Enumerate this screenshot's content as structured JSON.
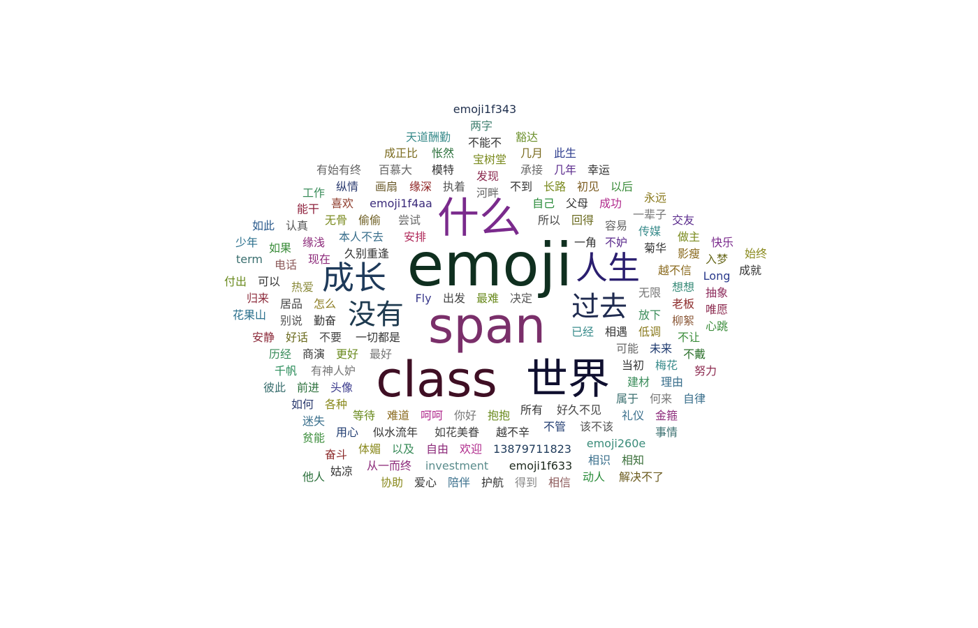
{
  "words": [
    {
      "text": "emoji1f343",
      "color": "#1f2f4d"
    },
    {
      "text": "两字",
      "color": "#3f7f6f"
    },
    {
      "text": "天道酬勤",
      "color": "#3a8c8c"
    },
    {
      "text": "不能不",
      "color": "#333333"
    },
    {
      "text": "豁达",
      "color": "#6b8f2a"
    },
    {
      "text": "成正比",
      "color": "#7a6a1e"
    },
    {
      "text": "怅然",
      "color": "#2a6f3a"
    },
    {
      "text": "宝树堂",
      "color": "#7a8a1e"
    },
    {
      "text": "几月",
      "color": "#7a6a1e"
    },
    {
      "text": "此生",
      "color": "#2a3a8c"
    },
    {
      "text": "有始有终",
      "color": "#666666"
    },
    {
      "text": "百慕大",
      "color": "#666666"
    },
    {
      "text": "模特",
      "color": "#333333"
    },
    {
      "text": "发现",
      "color": "#8a2a4f"
    },
    {
      "text": "承接",
      "color": "#6a6a6a"
    },
    {
      "text": "几年",
      "color": "#5a2a8c"
    },
    {
      "text": "幸运",
      "color": "#333333"
    },
    {
      "text": "工作",
      "color": "#3a8c5a"
    },
    {
      "text": "纵情",
      "color": "#2a3a6f"
    },
    {
      "text": "画扇",
      "color": "#6a5a2a"
    },
    {
      "text": "缘深",
      "color": "#8c1e1e"
    },
    {
      "text": "执着",
      "color": "#555555"
    },
    {
      "text": "河畔",
      "color": "#666666"
    },
    {
      "text": "不到",
      "color": "#333333"
    },
    {
      "text": "长路",
      "color": "#7a8a1e"
    },
    {
      "text": "初见",
      "color": "#7a5a1e"
    },
    {
      "text": "以后",
      "color": "#3a8c3a"
    },
    {
      "text": "永远",
      "color": "#8a7a1e"
    },
    {
      "text": "能干",
      "color": "#8c1e3a"
    },
    {
      "text": "喜欢",
      "color": "#8c3a2a"
    },
    {
      "text": "emoji1f4aa",
      "color": "#3a2a7a"
    },
    {
      "text": "自己",
      "color": "#2a8c3a"
    },
    {
      "text": "父母",
      "color": "#333333"
    },
    {
      "text": "成功",
      "color": "#b02a8c"
    },
    {
      "text": "一辈子",
      "color": "#777777"
    },
    {
      "text": "什么",
      "color": "#7a2a8c"
    },
    {
      "text": "如此",
      "color": "#2a5a8c"
    },
    {
      "text": "认真",
      "color": "#555555"
    },
    {
      "text": "无骨",
      "color": "#7a8a1e"
    },
    {
      "text": "偷偷",
      "color": "#6a5a1e"
    },
    {
      "text": "尝试",
      "color": "#6a6a6a"
    },
    {
      "text": "所以",
      "color": "#444444"
    },
    {
      "text": "回得",
      "color": "#6a6a1e"
    },
    {
      "text": "容易",
      "color": "#666666"
    },
    {
      "text": "传媒",
      "color": "#3a8c8c"
    },
    {
      "text": "交友",
      "color": "#5a2a8c"
    },
    {
      "text": "少年",
      "color": "#2a6f8c"
    },
    {
      "text": "本人不去",
      "color": "#3a6f8c"
    },
    {
      "text": "安排",
      "color": "#b02a5a"
    },
    {
      "text": "一角",
      "color": "#333333"
    },
    {
      "text": "不妒",
      "color": "#5a2a8c"
    },
    {
      "text": "做主",
      "color": "#7a8a1e"
    },
    {
      "text": "emoji",
      "color": "#0f2f1f"
    },
    {
      "text": "如果",
      "color": "#3a8c3a"
    },
    {
      "text": "缘浅",
      "color": "#8c2a7a"
    },
    {
      "text": "久别重逢",
      "color": "#333333"
    },
    {
      "text": "成长",
      "color": "#1e3a5a"
    },
    {
      "text": "人生",
      "color": "#2a1e6f"
    },
    {
      "text": "菊华",
      "color": "#333333"
    },
    {
      "text": "快乐",
      "color": "#7a2a8c"
    },
    {
      "text": "始终",
      "color": "#8a8a1e"
    },
    {
      "text": "term",
      "color": "#3a6f6f"
    },
    {
      "text": "电话",
      "color": "#8c5a5a"
    },
    {
      "text": "现在",
      "color": "#8c2a7a"
    },
    {
      "text": "影瘦",
      "color": "#8a6a1e"
    },
    {
      "text": "入梦",
      "color": "#6a6a1e"
    },
    {
      "text": "越不信",
      "color": "#8a6a1e"
    },
    {
      "text": "成就",
      "color": "#333333"
    },
    {
      "text": "付出",
      "color": "#6a8a1e"
    },
    {
      "text": "可以",
      "color": "#333333"
    },
    {
      "text": "热爱",
      "color": "#8a8a3a"
    },
    {
      "text": "Long",
      "color": "#2a3a8c"
    },
    {
      "text": "想想",
      "color": "#3a8c7a"
    },
    {
      "text": "无限",
      "color": "#777777"
    },
    {
      "text": "抽象",
      "color": "#8c2a5a"
    },
    {
      "text": "归来",
      "color": "#8c2a3a"
    },
    {
      "text": "居品",
      "color": "#444444"
    },
    {
      "text": "怎么",
      "color": "#8a7a1e"
    },
    {
      "text": "没有",
      "color": "#1e3a4f"
    },
    {
      "text": "Fly",
      "color": "#3a3a8c"
    },
    {
      "text": "出发",
      "color": "#444444"
    },
    {
      "text": "最难",
      "color": "#6a8a1e"
    },
    {
      "text": "决定",
      "color": "#555555"
    },
    {
      "text": "过去",
      "color": "#1e2a4f"
    },
    {
      "text": "老板",
      "color": "#8c2a2a"
    },
    {
      "text": "唯愿",
      "color": "#8c2a4f"
    },
    {
      "text": "花果山",
      "color": "#2a6f8c"
    },
    {
      "text": "别说",
      "color": "#555555"
    },
    {
      "text": "勤奋",
      "color": "#333333"
    },
    {
      "text": "span",
      "color": "#7a2f6a"
    },
    {
      "text": "放下",
      "color": "#3a8c5a"
    },
    {
      "text": "柳絮",
      "color": "#8c5a3a"
    },
    {
      "text": "心跳",
      "color": "#3a8c3a"
    },
    {
      "text": "已经",
      "color": "#3a8c8c"
    },
    {
      "text": "相遇",
      "color": "#333333"
    },
    {
      "text": "低调",
      "color": "#8a7a1e"
    },
    {
      "text": "安静",
      "color": "#8c2a3a"
    },
    {
      "text": "好话",
      "color": "#6a6a1e"
    },
    {
      "text": "不要",
      "color": "#444444"
    },
    {
      "text": "一切都是",
      "color": "#333333"
    },
    {
      "text": "不让",
      "color": "#3a8c3a"
    },
    {
      "text": "可能",
      "color": "#666666"
    },
    {
      "text": "未来",
      "color": "#1e3a6f"
    },
    {
      "text": "历经",
      "color": "#3a8c5a"
    },
    {
      "text": "商演",
      "color": "#333333"
    },
    {
      "text": "更好",
      "color": "#6a8a1e"
    },
    {
      "text": "最好",
      "color": "#777777"
    },
    {
      "text": "不戴",
      "color": "#2a6f2a"
    },
    {
      "text": "class",
      "color": "#3f0f24"
    },
    {
      "text": "世界",
      "color": "#0f0f2f"
    },
    {
      "text": "梅花",
      "color": "#3a8c8c"
    },
    {
      "text": "千帆",
      "color": "#2a8c5a"
    },
    {
      "text": "有神人妒",
      "color": "#777777"
    },
    {
      "text": "当初",
      "color": "#333333"
    },
    {
      "text": "努力",
      "color": "#8c2a4f"
    },
    {
      "text": "彼此",
      "color": "#3a6f6f"
    },
    {
      "text": "前进",
      "color": "#2a6f3a"
    },
    {
      "text": "头像",
      "color": "#3a3a8c"
    },
    {
      "text": "建材",
      "color": "#3a8c5a"
    },
    {
      "text": "理由",
      "color": "#3a6f8c"
    },
    {
      "text": "如何",
      "color": "#2a3a6f"
    },
    {
      "text": "各种",
      "color": "#8a8a1e"
    },
    {
      "text": "属于",
      "color": "#3a6f6f"
    },
    {
      "text": "何来",
      "color": "#777777"
    },
    {
      "text": "自律",
      "color": "#3a6f8c"
    },
    {
      "text": "所有",
      "color": "#333333"
    },
    {
      "text": "好久不见",
      "color": "#444444"
    },
    {
      "text": "迷失",
      "color": "#3a6f8c"
    },
    {
      "text": "等待",
      "color": "#6a8a1e"
    },
    {
      "text": "难道",
      "color": "#8a6a1e"
    },
    {
      "text": "呵呵",
      "color": "#b02a8c"
    },
    {
      "text": "你好",
      "color": "#777777"
    },
    {
      "text": "抱抱",
      "color": "#6a8a1e"
    },
    {
      "text": "礼仪",
      "color": "#3a6f8c"
    },
    {
      "text": "金箍",
      "color": "#8c2a7a"
    },
    {
      "text": "贫能",
      "color": "#3a8c3a"
    },
    {
      "text": "用心",
      "color": "#1e3a6f"
    },
    {
      "text": "似水流年",
      "color": "#333333"
    },
    {
      "text": "如花美眷",
      "color": "#444444"
    },
    {
      "text": "越不辛",
      "color": "#333333"
    },
    {
      "text": "不管",
      "color": "#1e3a6f"
    },
    {
      "text": "该不该",
      "color": "#555555"
    },
    {
      "text": "事情",
      "color": "#3a6f6f"
    },
    {
      "text": "体媚",
      "color": "#8a8a1e"
    },
    {
      "text": "以及",
      "color": "#3a8c5a"
    },
    {
      "text": "自由",
      "color": "#8c2a7a"
    },
    {
      "text": "欢迎",
      "color": "#b02a8c"
    },
    {
      "text": "13879711823",
      "color": "#1e3a5a"
    },
    {
      "text": "emoji260e",
      "color": "#3a8c7a"
    },
    {
      "text": "奋斗",
      "color": "#8c2a2a"
    },
    {
      "text": "从一而终",
      "color": "#8c2a7a"
    },
    {
      "text": "investment",
      "color": "#5a8c8c"
    },
    {
      "text": "emoji1f633",
      "color": "#1e2a1e"
    },
    {
      "text": "相识",
      "color": "#3a6f8c"
    },
    {
      "text": "相知",
      "color": "#3a6f3a"
    },
    {
      "text": "姑凉",
      "color": "#333333"
    },
    {
      "text": "他人",
      "color": "#2a6f3a"
    },
    {
      "text": "协助",
      "color": "#8a8a1e"
    },
    {
      "text": "爱心",
      "color": "#333333"
    },
    {
      "text": "陪伴",
      "color": "#3a6f8c"
    },
    {
      "text": "护航",
      "color": "#333333"
    },
    {
      "text": "得到",
      "color": "#888888"
    },
    {
      "text": "相信",
      "color": "#8c5a5a"
    },
    {
      "text": "动人",
      "color": "#2a8c3a"
    },
    {
      "text": "解决不了",
      "color": "#6a5a1e"
    }
  ]
}
